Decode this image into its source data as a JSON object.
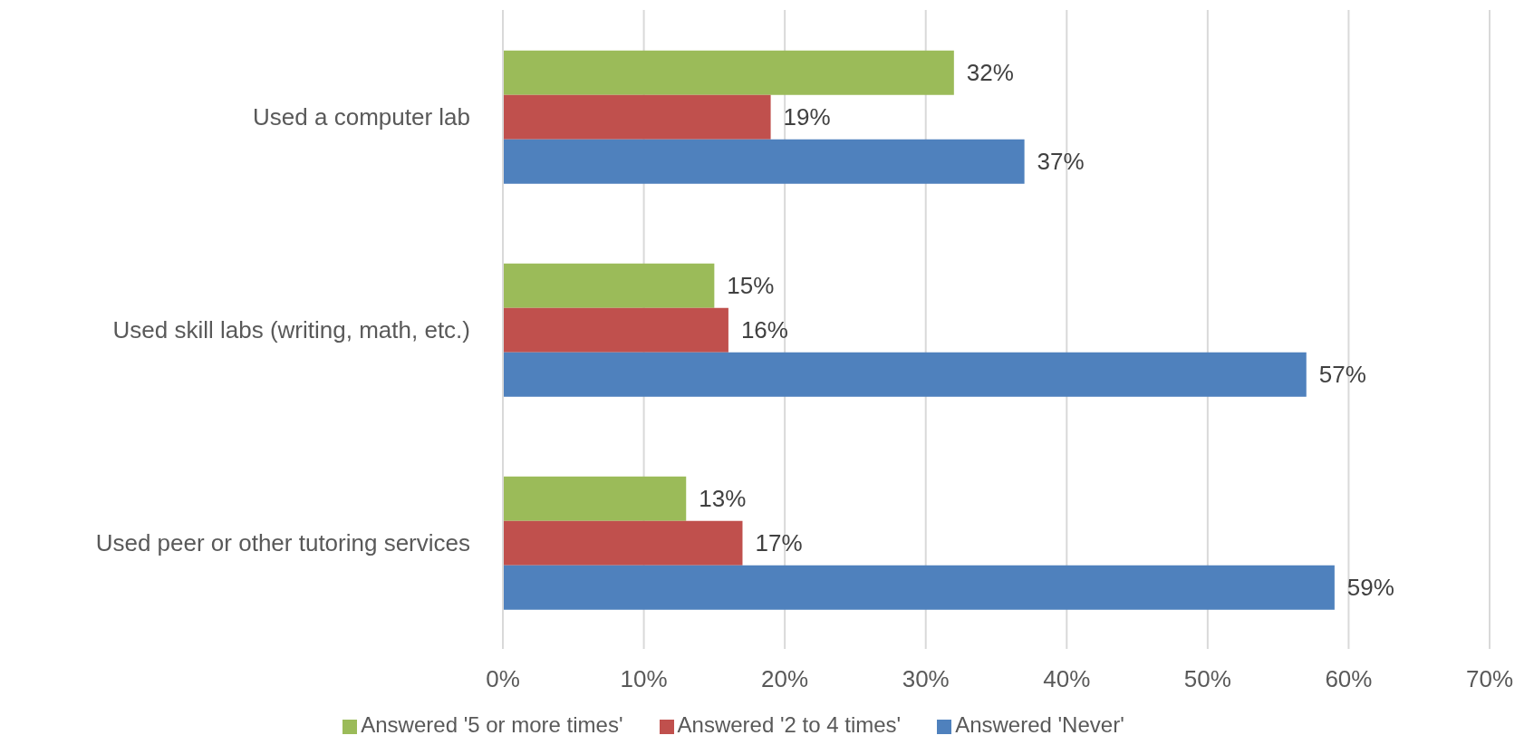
{
  "chart_data": {
    "type": "bar",
    "orientation": "horizontal",
    "categories": [
      "Used a computer lab",
      "Used skill labs (writing, math, etc.)",
      "Used peer or other tutoring services"
    ],
    "series": [
      {
        "name": "Answered '5 or more times'",
        "color": "#9bbb59",
        "values": [
          32,
          15,
          13
        ],
        "value_labels": [
          "32%",
          "15%",
          "13%"
        ]
      },
      {
        "name": "Answered '2 to 4 times'",
        "color": "#c0504d",
        "values": [
          19,
          16,
          17
        ],
        "value_labels": [
          "19%",
          "16%",
          "17%"
        ]
      },
      {
        "name": "Answered 'Never'",
        "color": "#4f81bd",
        "values": [
          37,
          57,
          59
        ],
        "value_labels": [
          "37%",
          "57%",
          "59%"
        ]
      }
    ],
    "xlim": [
      0,
      70
    ],
    "xticks": [
      {
        "value": 0,
        "label": "0%"
      },
      {
        "value": 10,
        "label": "10%"
      },
      {
        "value": 20,
        "label": "20%"
      },
      {
        "value": 30,
        "label": "30%"
      },
      {
        "value": 40,
        "label": "40%"
      },
      {
        "value": 50,
        "label": "50%"
      },
      {
        "value": 60,
        "label": "60%"
      },
      {
        "value": 70,
        "label": "70%"
      }
    ],
    "grid": "x",
    "legend": "bottom"
  }
}
